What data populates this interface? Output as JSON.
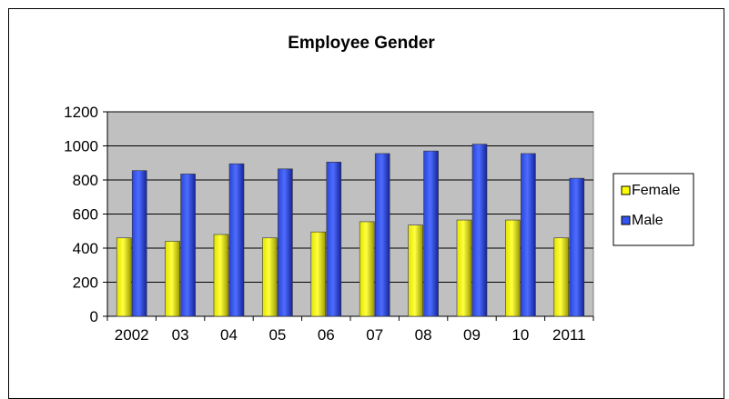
{
  "chart_data": {
    "type": "bar",
    "title": "Employee Gender",
    "categories": [
      "2002",
      "03",
      "04",
      "05",
      "06",
      "07",
      "08",
      "09",
      "10",
      "2011"
    ],
    "series": [
      {
        "name": "Female",
        "values": [
          460,
          440,
          480,
          460,
          495,
          555,
          535,
          565,
          565,
          460
        ]
      },
      {
        "name": "Male",
        "values": [
          855,
          835,
          895,
          865,
          905,
          955,
          970,
          1010,
          955,
          810
        ]
      }
    ],
    "xlabel": "",
    "ylabel": "",
    "ylim": [
      0,
      1200
    ],
    "yticks": [
      0,
      200,
      400,
      600,
      800,
      1000,
      1200
    ],
    "grid": true,
    "legend": "right",
    "colors": {
      "female": "#ffff00",
      "male": "#3355ee",
      "plot_bg": "#c0c0c0"
    }
  }
}
